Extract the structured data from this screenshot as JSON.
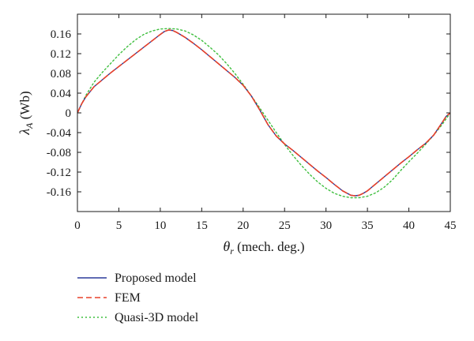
{
  "chart_data": {
    "type": "line",
    "title": "",
    "xlabel": {
      "symbol": "θ",
      "sub": "r",
      "text": " (mech. deg.)"
    },
    "ylabel": {
      "symbol": "λ",
      "sub": "A",
      "text": " (Wb)"
    },
    "xlim": [
      0,
      45
    ],
    "ylim": [
      -0.2,
      0.2
    ],
    "xticks": [
      0,
      5,
      10,
      15,
      20,
      25,
      30,
      35,
      40,
      45
    ],
    "xtick_labels": [
      "0",
      "5",
      "10",
      "15",
      "20",
      "25",
      "30",
      "35",
      "40",
      "45"
    ],
    "yticks": [
      0.16,
      0.12,
      0.08,
      0.04,
      0,
      -0.04,
      -0.08,
      -0.12,
      -0.16
    ],
    "ytick_labels": [
      "0.16",
      "0.12",
      "0.08",
      "0.04",
      "0",
      "-0.04",
      "-0.08",
      "-0.12",
      "-0.16"
    ],
    "grid": false,
    "legend_position": "below",
    "series": [
      {
        "name": "Proposed model",
        "color": "#2b3a9a",
        "style": "solid",
        "x": [
          0,
          0.5,
          1,
          2,
          3,
          4,
          5,
          6,
          7,
          8,
          9,
          10,
          10.5,
          11,
          11.5,
          12,
          13,
          14,
          15,
          16,
          17,
          18,
          19,
          20,
          21,
          22,
          23,
          24,
          25,
          26,
          27,
          28,
          29,
          30,
          31,
          32,
          33,
          33.5,
          34,
          34.5,
          35,
          36,
          37,
          38,
          39,
          40,
          41,
          42,
          43,
          44,
          44.5,
          45
        ],
        "y": [
          0,
          0.018,
          0.032,
          0.053,
          0.067,
          0.081,
          0.094,
          0.107,
          0.12,
          0.133,
          0.146,
          0.159,
          0.165,
          0.168,
          0.167,
          0.163,
          0.153,
          0.141,
          0.128,
          0.114,
          0.1,
          0.086,
          0.072,
          0.056,
          0.034,
          0.006,
          -0.024,
          -0.047,
          -0.063,
          -0.076,
          -0.09,
          -0.104,
          -0.118,
          -0.131,
          -0.145,
          -0.158,
          -0.167,
          -0.168,
          -0.167,
          -0.163,
          -0.158,
          -0.144,
          -0.13,
          -0.116,
          -0.102,
          -0.089,
          -0.075,
          -0.062,
          -0.045,
          -0.02,
          -0.007,
          0
        ]
      },
      {
        "name": "FEM",
        "color": "#e8402a",
        "style": "dashed",
        "x": [
          0,
          0.5,
          1,
          2,
          3,
          4,
          5,
          6,
          7,
          8,
          9,
          10,
          10.5,
          11,
          11.5,
          12,
          13,
          14,
          15,
          16,
          17,
          18,
          19,
          20,
          21,
          22,
          23,
          24,
          25,
          26,
          27,
          28,
          29,
          30,
          31,
          32,
          33,
          33.5,
          34,
          34.5,
          35,
          36,
          37,
          38,
          39,
          40,
          41,
          42,
          43,
          44,
          44.5,
          45
        ],
        "y": [
          0,
          0.018,
          0.032,
          0.053,
          0.067,
          0.081,
          0.094,
          0.107,
          0.12,
          0.133,
          0.146,
          0.159,
          0.165,
          0.168,
          0.167,
          0.163,
          0.153,
          0.141,
          0.128,
          0.114,
          0.1,
          0.086,
          0.072,
          0.056,
          0.034,
          0.006,
          -0.024,
          -0.047,
          -0.063,
          -0.076,
          -0.09,
          -0.104,
          -0.118,
          -0.131,
          -0.145,
          -0.158,
          -0.167,
          -0.168,
          -0.167,
          -0.163,
          -0.158,
          -0.144,
          -0.13,
          -0.116,
          -0.102,
          -0.089,
          -0.075,
          -0.062,
          -0.045,
          -0.02,
          -0.007,
          0
        ]
      },
      {
        "name": "Quasi-3D model",
        "color": "#3fbf3f",
        "style": "dotted",
        "x": [
          0,
          1,
          2,
          3,
          4,
          5,
          6,
          7,
          8,
          9,
          10,
          11,
          12,
          13,
          14,
          15,
          16,
          17,
          18,
          19,
          20,
          21,
          22,
          23,
          24,
          25,
          26,
          27,
          28,
          29,
          30,
          31,
          32,
          33,
          34,
          35,
          36,
          37,
          38,
          39,
          40,
          41,
          42,
          43,
          44,
          45
        ],
        "y": [
          0,
          0.035,
          0.062,
          0.082,
          0.1,
          0.118,
          0.134,
          0.148,
          0.159,
          0.166,
          0.17,
          0.171,
          0.17,
          0.166,
          0.158,
          0.147,
          0.133,
          0.118,
          0.1,
          0.08,
          0.058,
          0.034,
          0.01,
          -0.015,
          -0.04,
          -0.064,
          -0.086,
          -0.106,
          -0.124,
          -0.14,
          -0.153,
          -0.163,
          -0.169,
          -0.172,
          -0.172,
          -0.169,
          -0.162,
          -0.151,
          -0.136,
          -0.117,
          -0.099,
          -0.082,
          -0.064,
          -0.045,
          -0.024,
          0
        ]
      }
    ]
  }
}
